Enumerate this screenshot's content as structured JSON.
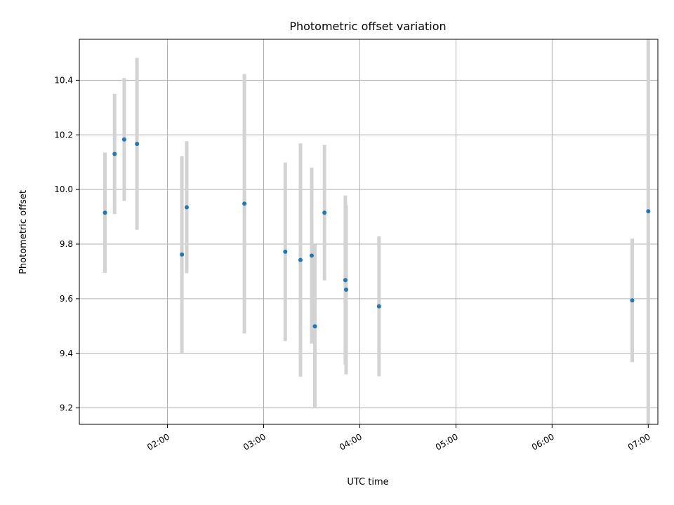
{
  "chart_data": {
    "type": "scatter",
    "title": "Photometric offset variation",
    "xlabel": "UTC time",
    "ylabel": "Photometric offset",
    "x_unit": "hours UTC",
    "xlim": [
      1.0833,
      7.1
    ],
    "ylim": [
      9.14,
      10.55
    ],
    "grid": true,
    "x_ticks": [
      {
        "value": 2,
        "label": "02:00"
      },
      {
        "value": 3,
        "label": "03:00"
      },
      {
        "value": 4,
        "label": "04:00"
      },
      {
        "value": 5,
        "label": "05:00"
      },
      {
        "value": 6,
        "label": "06:00"
      },
      {
        "value": 7,
        "label": "07:00"
      }
    ],
    "y_ticks": [
      {
        "value": 9.2,
        "label": "9.2"
      },
      {
        "value": 9.4,
        "label": "9.4"
      },
      {
        "value": 9.6,
        "label": "9.6"
      },
      {
        "value": 9.8,
        "label": "9.8"
      },
      {
        "value": 10.0,
        "label": "10.0"
      },
      {
        "value": 10.2,
        "label": "10.2"
      },
      {
        "value": 10.4,
        "label": "10.4"
      }
    ],
    "marker_color": "#1f77b4",
    "errorbar_color": "#d3d3d3",
    "points": [
      {
        "x": 1.35,
        "y": 9.915,
        "err": 0.22
      },
      {
        "x": 1.45,
        "y": 10.13,
        "err": 0.22
      },
      {
        "x": 1.55,
        "y": 10.183,
        "err": 0.225
      },
      {
        "x": 1.683,
        "y": 10.167,
        "err": 0.315
      },
      {
        "x": 2.15,
        "y": 9.762,
        "err": 0.36
      },
      {
        "x": 2.2,
        "y": 9.935,
        "err": 0.242
      },
      {
        "x": 2.8,
        "y": 9.948,
        "err": 0.475
      },
      {
        "x": 3.225,
        "y": 9.772,
        "err": 0.327
      },
      {
        "x": 3.383,
        "y": 9.742,
        "err": 0.427
      },
      {
        "x": 3.5,
        "y": 9.758,
        "err": 0.322
      },
      {
        "x": 3.533,
        "y": 9.499,
        "err": 0.3
      },
      {
        "x": 3.633,
        "y": 9.915,
        "err": 0.248
      },
      {
        "x": 3.85,
        "y": 9.668,
        "err": 0.31
      },
      {
        "x": 3.858,
        "y": 9.633,
        "err": 0.31
      },
      {
        "x": 4.2,
        "y": 9.572,
        "err": 0.256
      },
      {
        "x": 6.833,
        "y": 9.594,
        "err": 0.226
      },
      {
        "x": 7.0,
        "y": 9.92,
        "err": 0.85
      }
    ]
  }
}
